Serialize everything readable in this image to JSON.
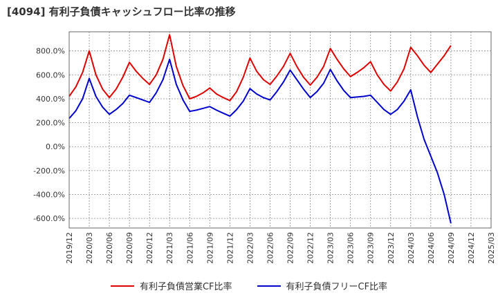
{
  "title": "[4094]  有利子負債キャッシュフロー比率の推移",
  "chart_data": {
    "type": "line",
    "x": [
      "2019/12",
      "2020/01",
      "2020/02",
      "2020/03",
      "2020/04",
      "2020/05",
      "2020/06",
      "2020/07",
      "2020/08",
      "2020/09",
      "2020/10",
      "2020/11",
      "2020/12",
      "2021/01",
      "2021/02",
      "2021/03",
      "2021/04",
      "2021/05",
      "2021/06",
      "2021/07",
      "2021/08",
      "2021/09",
      "2021/10",
      "2021/11",
      "2021/12",
      "2022/01",
      "2022/02",
      "2022/03",
      "2022/04",
      "2022/05",
      "2022/06",
      "2022/07",
      "2022/08",
      "2022/09",
      "2022/10",
      "2022/11",
      "2022/12",
      "2023/01",
      "2023/02",
      "2023/03",
      "2023/04",
      "2023/05",
      "2023/06",
      "2023/07",
      "2023/08",
      "2023/09",
      "2023/10",
      "2023/11",
      "2023/12",
      "2024/01",
      "2024/02",
      "2024/03",
      "2024/04",
      "2024/05",
      "2024/06",
      "2024/07",
      "2024/08",
      "2024/09"
    ],
    "x_tick_labels": [
      "2019/12",
      "2020/03",
      "2020/06",
      "2020/09",
      "2020/12",
      "2021/03",
      "2021/06",
      "2021/09",
      "2021/12",
      "2022/03",
      "2022/06",
      "2022/09",
      "2022/12",
      "2023/03",
      "2023/06",
      "2023/09",
      "2023/12",
      "2024/03",
      "2024/06",
      "2024/09",
      "2024/12",
      "2025/03"
    ],
    "y_tick_labels": [
      "800.0%",
      "600.0%",
      "400.0%",
      "200.0%",
      "0.0%",
      "-200.0%",
      "-400.0%",
      "-600.0%"
    ],
    "y_ticks": [
      800,
      600,
      400,
      200,
      0,
      -200,
      -400,
      -600
    ],
    "ylim": [
      -680,
      960
    ],
    "grid": true,
    "legend_position": "bottom",
    "series": [
      {
        "name": "有利子負債営業CF比率",
        "color": "#dd0000",
        "values": [
          420,
          500,
          620,
          800,
          600,
          480,
          410,
          480,
          580,
          705,
          630,
          570,
          520,
          600,
          730,
          935,
          670,
          510,
          400,
          420,
          450,
          490,
          440,
          410,
          385,
          460,
          580,
          740,
          630,
          560,
          520,
          590,
          670,
          780,
          670,
          580,
          515,
          580,
          670,
          820,
          730,
          650,
          585,
          620,
          660,
          710,
          600,
          520,
          465,
          540,
          650,
          830,
          760,
          680,
          620,
          690,
          760,
          845
        ]
      },
      {
        "name": "有利子負債フリーCF比率",
        "color": "#0000cc",
        "values": [
          235,
          300,
          400,
          570,
          420,
          330,
          270,
          310,
          360,
          430,
          410,
          390,
          370,
          450,
          560,
          730,
          520,
          390,
          295,
          305,
          320,
          335,
          305,
          280,
          255,
          310,
          380,
          485,
          440,
          410,
          390,
          460,
          540,
          640,
          560,
          480,
          410,
          460,
          530,
          645,
          550,
          470,
          410,
          415,
          420,
          430,
          370,
          310,
          270,
          310,
          380,
          475,
          250,
          60,
          -80,
          -220,
          -400,
          -640
        ]
      }
    ]
  }
}
